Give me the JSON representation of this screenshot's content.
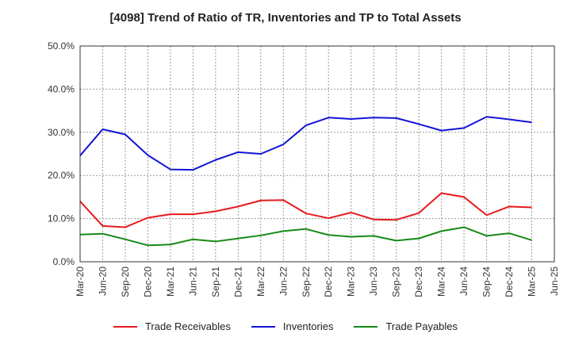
{
  "chart_data": {
    "type": "line",
    "title": "[4098]  Trend of Ratio of TR, Inventories and TP to Total Assets",
    "xlabel": "",
    "ylabel": "",
    "ylim": [
      0,
      50
    ],
    "y_ticks": [
      "0.0%",
      "10.0%",
      "20.0%",
      "30.0%",
      "40.0%",
      "50.0%"
    ],
    "y_tick_values": [
      0,
      10,
      20,
      30,
      40,
      50
    ],
    "x_tick_labels": [
      "Mar-20",
      "Jun-20",
      "Sep-20",
      "Dec-20",
      "Mar-21",
      "Jun-21",
      "Sep-21",
      "Dec-21",
      "Mar-22",
      "Jun-22",
      "Sep-22",
      "Dec-22",
      "Mar-23",
      "Jun-23",
      "Sep-23",
      "Dec-23",
      "Mar-24",
      "Jun-24",
      "Sep-24",
      "Dec-24",
      "Mar-25",
      "Jun-25"
    ],
    "x": [
      "Mar-20",
      "Jun-20",
      "Sep-20",
      "Dec-20",
      "Mar-21",
      "Jun-21",
      "Sep-21",
      "Dec-21",
      "Mar-22",
      "Jun-22",
      "Sep-22",
      "Dec-22",
      "Mar-23",
      "Jun-23",
      "Sep-23",
      "Dec-23",
      "Mar-24",
      "Jun-24",
      "Sep-24",
      "Dec-24",
      "Mar-25"
    ],
    "grid": true,
    "legend_position": "bottom",
    "series": [
      {
        "name": "Trade Receivables",
        "color": "#e8191c",
        "values": [
          14.0,
          8.3,
          8.0,
          10.2,
          11.0,
          11.0,
          11.7,
          12.8,
          14.2,
          14.3,
          11.2,
          10.1,
          11.4,
          9.8,
          9.7,
          11.3,
          15.9,
          15.0,
          10.8,
          12.8,
          12.6
        ]
      },
      {
        "name": "Inventories",
        "color": "#1414d6",
        "values": [
          24.6,
          30.7,
          29.5,
          24.7,
          21.4,
          21.3,
          23.6,
          25.4,
          25.0,
          27.2,
          31.6,
          33.4,
          33.1,
          33.4,
          33.3,
          31.9,
          30.4,
          31.0,
          33.6,
          33.0,
          32.3
        ]
      },
      {
        "name": "Trade Payables",
        "color": "#168a16",
        "values": [
          6.3,
          6.5,
          5.2,
          3.8,
          4.0,
          5.2,
          4.7,
          5.4,
          6.1,
          7.1,
          7.6,
          6.2,
          5.8,
          6.0,
          4.9,
          5.4,
          7.1,
          8.0,
          6.0,
          6.6,
          5.0
        ]
      }
    ]
  }
}
